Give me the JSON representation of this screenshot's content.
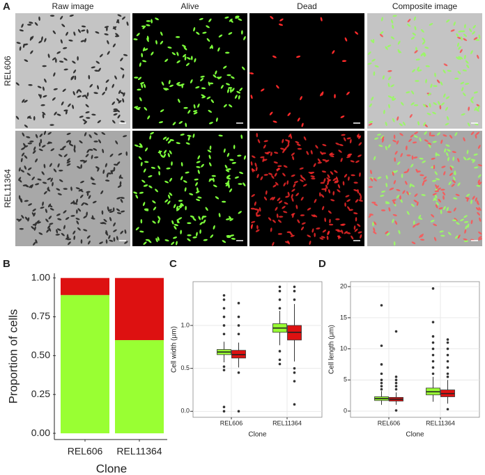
{
  "panel_a": {
    "label": "A",
    "columns": [
      "Raw image",
      "Alive",
      "Dead",
      "Composite image"
    ],
    "rows": [
      "REL606",
      "REL11364"
    ]
  },
  "chart_data": [
    {
      "panel_label": "B",
      "type": "bar",
      "stacked": true,
      "ylabel": "Proportion of cells",
      "xlabel": "Clone",
      "categories": [
        "REL606",
        "REL11364"
      ],
      "series": [
        {
          "color": "#99ff33",
          "values": [
            0.89,
            0.6
          ]
        },
        {
          "color": "#dd1111",
          "values": [
            0.11,
            0.4
          ]
        }
      ],
      "ylim": [
        -0.04,
        1.03
      ],
      "yticks": [
        {
          "value": 0,
          "label": "0.00"
        },
        {
          "value": 0.25,
          "label": "0.25"
        },
        {
          "value": 0.5,
          "label": "0.50"
        },
        {
          "value": 0.75,
          "label": "0.75"
        },
        {
          "value": 1,
          "label": "1.00"
        }
      ],
      "grid": false
    },
    {
      "panel_label": "C",
      "type": "box",
      "ylabel": "Cell width (μm)",
      "xlabel": "Clone",
      "categories": [
        "REL606",
        "REL11364"
      ],
      "series": [
        {
          "color": "#99ff33",
          "boxes": [
            {
              "whislo": 0.57,
              "q1": 0.66,
              "median": 0.69,
              "q3": 0.72,
              "whishi": 0.81,
              "outliers": [
                0.0,
                0.05,
                0.48,
                0.52,
                0.9,
                1.0,
                1.1,
                1.2,
                1.3,
                1.35
              ]
            },
            {
              "whislo": 0.77,
              "q1": 0.92,
              "median": 0.97,
              "q3": 1.02,
              "whishi": 1.17,
              "outliers": [
                0.55,
                0.6,
                0.7,
                1.2,
                1.3,
                1.4,
                1.45
              ]
            }
          ]
        },
        {
          "color": "#dd1111",
          "boxes": [
            {
              "whislo": 0.51,
              "q1": 0.62,
              "median": 0.66,
              "q3": 0.71,
              "whishi": 0.8,
              "outliers": [
                0.0,
                0.45,
                0.9,
                1.0,
                1.1,
                1.26
              ]
            },
            {
              "whislo": 0.58,
              "q1": 0.83,
              "median": 0.92,
              "q3": 1.0,
              "whishi": 1.25,
              "outliers": [
                0.08,
                0.35,
                0.45,
                0.5,
                1.3,
                1.4,
                1.45
              ]
            }
          ]
        }
      ],
      "ylim": [
        -0.07,
        1.51
      ],
      "yticks": [
        {
          "value": 0,
          "label": "0.0"
        },
        {
          "value": 0.5,
          "label": "0.5"
        },
        {
          "value": 1,
          "label": "1.0"
        }
      ],
      "grid": true
    },
    {
      "panel_label": "D",
      "type": "box",
      "ylabel": "Cell length (μm)",
      "xlabel": "Clone",
      "categories": [
        "REL606",
        "REL11364"
      ],
      "series": [
        {
          "color": "#99ff33",
          "boxes": [
            {
              "whislo": 1.0,
              "q1": 1.7,
              "median": 2.0,
              "q3": 2.3,
              "whishi": 3.2,
              "outliers": [
                3.5,
                4,
                4.5,
                5,
                6,
                7.5,
                10.5,
                17
              ]
            },
            {
              "whislo": 1.5,
              "q1": 2.6,
              "median": 3.1,
              "q3": 3.7,
              "whishi": 5.5,
              "outliers": [
                6,
                7,
                8,
                9,
                10,
                11,
                12,
                14.3,
                19.7
              ]
            }
          ]
        },
        {
          "color": "#dd1111",
          "boxes": [
            {
              "whislo": 1.0,
              "q1": 1.6,
              "median": 1.9,
              "q3": 2.2,
              "whishi": 3.0,
              "outliers": [
                0.1,
                3.5,
                4,
                4.5,
                5,
                5.5,
                12.8
              ]
            },
            {
              "whislo": 1.2,
              "q1": 2.3,
              "median": 2.8,
              "q3": 3.4,
              "whishi": 5.0,
              "outliers": [
                0.3,
                5.5,
                6,
                7,
                8,
                9,
                10,
                11,
                11.5
              ]
            }
          ]
        }
      ],
      "ylim": [
        -1,
        20.8
      ],
      "yticks": [
        0,
        5,
        10,
        15,
        20
      ],
      "grid": true
    }
  ]
}
